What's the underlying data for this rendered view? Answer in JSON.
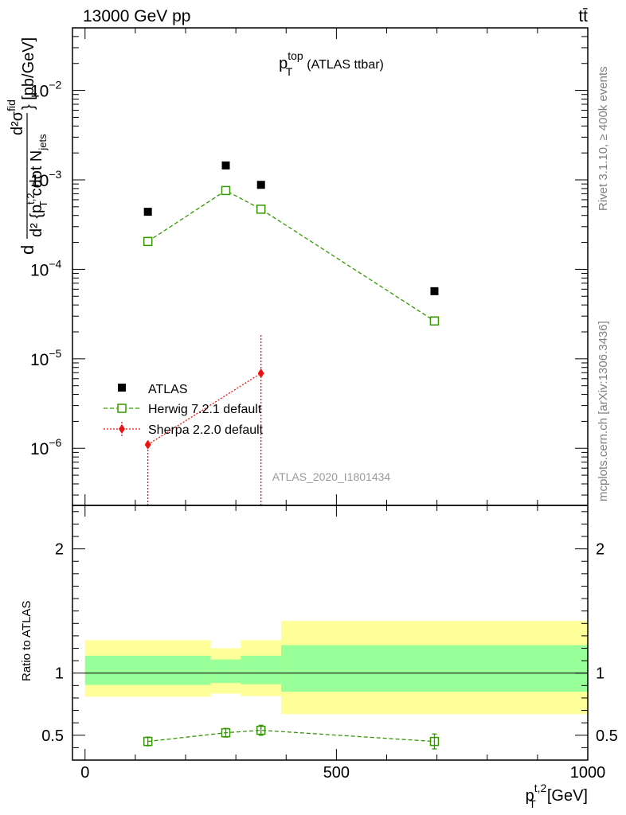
{
  "header": {
    "left": "13000 GeV pp",
    "right": "tt̄"
  },
  "side_labels": {
    "rivet": "Rivet 3.1.10, ≥ 400k events",
    "mcplots": "mcplots.cern.ch [arXiv:1306.3436]"
  },
  "watermark": "ATLAS_2020_I1801434",
  "chart_data": [
    {
      "type": "scatter",
      "panel": "main",
      "title": {
        "base": "p",
        "sup": "top",
        "sub": "T",
        "rest": "(ATLAS ttbar)"
      },
      "ylabel": {
        "frac_num": "d²σ",
        "frac_num_sup": "fid",
        "frac_den": "d² {p",
        "frac_den_sup": "t,2",
        "frac_den_sub": "T",
        "frac_den_rest": "cdot N",
        "frac_den_rest_sub": "jets",
        "tail": "} [pb/GeV]"
      },
      "yscale": "log",
      "ylim": [
        2.3e-07,
        0.05
      ],
      "xlim": [
        -25,
        1000
      ],
      "yticks": [
        {
          "value": 1e-06,
          "base": "10",
          "exp": "−6"
        },
        {
          "value": 1e-05,
          "base": "10",
          "exp": "−5"
        },
        {
          "value": 0.0001,
          "base": "10",
          "exp": "−4"
        },
        {
          "value": 0.001,
          "base": "10",
          "exp": "−3"
        },
        {
          "value": 0.01,
          "base": "10",
          "exp": "−2"
        }
      ],
      "legend_position": "lower-left",
      "series": [
        {
          "name": "ATLAS",
          "color": "#000000",
          "marker": "filled-square",
          "x": [
            125,
            280,
            350,
            695
          ],
          "y": [
            0.00044,
            0.00145,
            0.00088,
            5.7e-05
          ]
        },
        {
          "name": "Herwig 7.2.1 default",
          "color": "#339900",
          "marker": "open-square",
          "line": "dashed",
          "x": [
            125,
            280,
            350,
            695
          ],
          "y": [
            0.000205,
            0.00076,
            0.00047,
            2.65e-05
          ]
        },
        {
          "name": "Sherpa 2.2.0 default",
          "color": "#ee1111",
          "marker": "filled-diamond",
          "line": "dotted",
          "x": [
            125,
            350
          ],
          "y": [
            1.1e-06,
            6.9e-06
          ],
          "yerr_low": [
            1.1e-06,
            6.9e-06
          ],
          "yerr_high": [
            0,
            1.2e-05
          ]
        }
      ]
    },
    {
      "type": "scatter",
      "panel": "ratio",
      "ylabel": "Ratio to ATLAS",
      "xlabel": {
        "base": "p",
        "sup": "t,2",
        "sub": "T",
        "rest": "[GeV]"
      },
      "xlim": [
        -25,
        1000
      ],
      "ylim": [
        0.3,
        2.35
      ],
      "xticks": [
        0,
        500,
        1000
      ],
      "yticks": [
        0.5,
        1,
        2
      ],
      "bands": [
        {
          "x0": 0,
          "x1": 250,
          "inner": [
            0.905,
            1.14
          ],
          "outer": [
            0.81,
            1.265
          ]
        },
        {
          "x0": 250,
          "x1": 310,
          "inner": [
            0.92,
            1.11
          ],
          "outer": [
            0.835,
            1.2
          ]
        },
        {
          "x0": 310,
          "x1": 390,
          "inner": [
            0.91,
            1.14
          ],
          "outer": [
            0.815,
            1.265
          ]
        },
        {
          "x0": 390,
          "x1": 1000,
          "inner": [
            0.85,
            1.225
          ],
          "outer": [
            0.67,
            1.42
          ]
        }
      ],
      "band_colors": {
        "inner": "#99ff99",
        "outer": "#ffff99"
      },
      "series": [
        {
          "name": "Herwig 7.2.1 default",
          "color": "#339900",
          "x": [
            125,
            280,
            350,
            695
          ],
          "y": [
            0.45,
            0.52,
            0.54,
            0.45
          ],
          "yerr": [
            0.035,
            0.035,
            0.04,
            0.06
          ]
        }
      ]
    }
  ]
}
